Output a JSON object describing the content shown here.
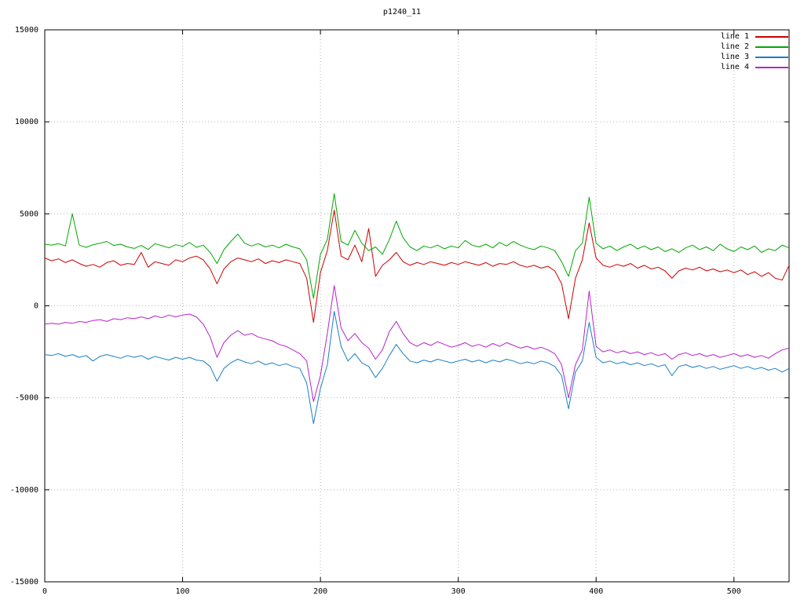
{
  "chart_data": {
    "type": "line",
    "title": "p1240_11",
    "xlabel": "",
    "ylabel": "",
    "xlim": [
      0,
      540
    ],
    "ylim": [
      -15000,
      15000
    ],
    "x_ticks": [
      0,
      100,
      200,
      300,
      400,
      500
    ],
    "y_ticks": [
      -15000,
      -10000,
      -5000,
      0,
      5000,
      10000,
      15000
    ],
    "grid": "dotted",
    "legend_position": "top-right",
    "x_start": 0,
    "x_step": 5,
    "series": [
      {
        "name": "line 1",
        "color": "#cc0000",
        "values": [
          2600,
          2450,
          2550,
          2350,
          2500,
          2300,
          2150,
          2250,
          2100,
          2350,
          2450,
          2200,
          2300,
          2250,
          2900,
          2100,
          2400,
          2300,
          2200,
          2500,
          2400,
          2600,
          2700,
          2500,
          2000,
          1200,
          2000,
          2400,
          2600,
          2500,
          2400,
          2550,
          2300,
          2450,
          2350,
          2500,
          2400,
          2300,
          1500,
          -900,
          1800,
          3000,
          5200,
          2700,
          2500,
          3300,
          2400,
          4200,
          1600,
          2200,
          2500,
          2900,
          2400,
          2200,
          2350,
          2250,
          2400,
          2300,
          2200,
          2350,
          2250,
          2400,
          2300,
          2200,
          2350,
          2150,
          2300,
          2250,
          2400,
          2200,
          2100,
          2200,
          2050,
          2150,
          1900,
          1200,
          -700,
          1500,
          2500,
          4500,
          2600,
          2200,
          2100,
          2250,
          2150,
          2300,
          2050,
          2200,
          2000,
          2100,
          1900,
          1500,
          1900,
          2050,
          1950,
          2100,
          1900,
          2000,
          1850,
          1950,
          1800,
          1950,
          1700,
          1850,
          1600,
          1800,
          1500,
          1400,
          2200
        ]
      },
      {
        "name": "line 2",
        "color": "#00a800",
        "values": [
          3350,
          3300,
          3380,
          3250,
          5000,
          3300,
          3180,
          3320,
          3400,
          3500,
          3280,
          3350,
          3200,
          3120,
          3280,
          3060,
          3380,
          3270,
          3150,
          3320,
          3230,
          3440,
          3180,
          3300,
          2900,
          2300,
          3050,
          3500,
          3900,
          3400,
          3250,
          3380,
          3200,
          3300,
          3150,
          3350,
          3200,
          3100,
          2500,
          400,
          2800,
          3600,
          6100,
          3500,
          3300,
          4100,
          3400,
          3000,
          3200,
          2800,
          3600,
          4600,
          3700,
          3200,
          3000,
          3250,
          3150,
          3300,
          3100,
          3250,
          3150,
          3550,
          3300,
          3200,
          3350,
          3150,
          3450,
          3250,
          3500,
          3300,
          3150,
          3050,
          3250,
          3150,
          3000,
          2400,
          1600,
          3000,
          3400,
          5900,
          3400,
          3100,
          3250,
          3000,
          3200,
          3350,
          3100,
          3250,
          3050,
          3200,
          2950,
          3100,
          2900,
          3150,
          3300,
          3050,
          3200,
          3000,
          3350,
          3100,
          2950,
          3200,
          3050,
          3250,
          2900,
          3100,
          3000,
          3300,
          3150
        ]
      },
      {
        "name": "line 3",
        "color": "#1b7fc4",
        "values": [
          -2650,
          -2700,
          -2600,
          -2750,
          -2650,
          -2800,
          -2700,
          -3000,
          -2750,
          -2650,
          -2750,
          -2850,
          -2700,
          -2800,
          -2700,
          -2900,
          -2750,
          -2850,
          -2950,
          -2800,
          -2900,
          -2800,
          -2950,
          -3000,
          -3300,
          -4100,
          -3400,
          -3100,
          -2900,
          -3050,
          -3150,
          -3000,
          -3200,
          -3100,
          -3250,
          -3150,
          -3300,
          -3400,
          -4200,
          -6400,
          -4500,
          -3200,
          -300,
          -2200,
          -3000,
          -2600,
          -3100,
          -3300,
          -3900,
          -3400,
          -2700,
          -2100,
          -2600,
          -3000,
          -3100,
          -2950,
          -3050,
          -2900,
          -3000,
          -3100,
          -3000,
          -2900,
          -3050,
          -2950,
          -3100,
          -2950,
          -3050,
          -2900,
          -3000,
          -3150,
          -3050,
          -3150,
          -3000,
          -3100,
          -3300,
          -3800,
          -5600,
          -3600,
          -3000,
          -900,
          -2800,
          -3100,
          -3000,
          -3150,
          -3050,
          -3200,
          -3100,
          -3250,
          -3150,
          -3300,
          -3200,
          -3800,
          -3300,
          -3200,
          -3350,
          -3250,
          -3400,
          -3300,
          -3450,
          -3350,
          -3250,
          -3400,
          -3300,
          -3450,
          -3350,
          -3500,
          -3400,
          -3600,
          -3400
        ]
      },
      {
        "name": "line 4",
        "color": "#b822cc",
        "values": [
          -1000,
          -950,
          -1000,
          -900,
          -950,
          -850,
          -900,
          -800,
          -750,
          -850,
          -700,
          -750,
          -650,
          -700,
          -600,
          -700,
          -550,
          -650,
          -500,
          -600,
          -500,
          -450,
          -600,
          -1000,
          -1700,
          -2800,
          -2000,
          -1600,
          -1350,
          -1600,
          -1500,
          -1700,
          -1800,
          -1900,
          -2100,
          -2200,
          -2400,
          -2600,
          -3000,
          -5200,
          -3800,
          -1500,
          1100,
          -1200,
          -1900,
          -1500,
          -2000,
          -2300,
          -2900,
          -2400,
          -1400,
          -850,
          -1500,
          -2000,
          -2200,
          -2000,
          -2150,
          -1950,
          -2100,
          -2250,
          -2150,
          -2000,
          -2200,
          -2100,
          -2250,
          -2050,
          -2200,
          -2000,
          -2150,
          -2300,
          -2200,
          -2350,
          -2250,
          -2400,
          -2600,
          -3200,
          -5000,
          -3200,
          -2400,
          800,
          -2200,
          -2500,
          -2400,
          -2550,
          -2450,
          -2600,
          -2500,
          -2650,
          -2550,
          -2700,
          -2600,
          -2900,
          -2650,
          -2550,
          -2700,
          -2600,
          -2750,
          -2650,
          -2800,
          -2700,
          -2600,
          -2750,
          -2650,
          -2800,
          -2700,
          -2850,
          -2600,
          -2400,
          -2300
        ]
      }
    ]
  }
}
